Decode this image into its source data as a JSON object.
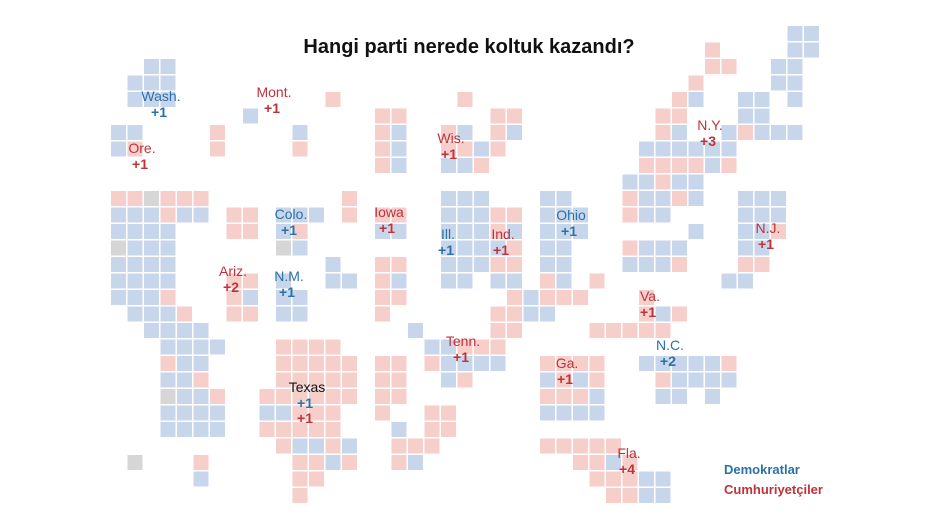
{
  "colors": {
    "dem": "#c8d6ec",
    "rep": "#f6cfcb",
    "gray": "#d6d6d6",
    "dem_text": "#2a71a8",
    "rep_text": "#c0323a",
    "neutral_text": "#111111"
  },
  "chart_data": {
    "type": "cartogram",
    "title": "Hangi parti nerede koltuk kazandı?",
    "legend": [
      {
        "key": "dem",
        "label": "Demokratlar"
      },
      {
        "key": "rep",
        "label": "Cumhuriyetçiler"
      }
    ],
    "flips": [
      {
        "state": "Wash.",
        "values": [
          {
            "party": "dem",
            "text": "+1"
          }
        ]
      },
      {
        "state": "Ore.",
        "values": [
          {
            "party": "rep",
            "text": "+1"
          }
        ]
      },
      {
        "state": "Mont.",
        "values": [
          {
            "party": "rep",
            "text": "+1"
          }
        ]
      },
      {
        "state": "Wis.",
        "values": [
          {
            "party": "rep",
            "text": "+1"
          }
        ]
      },
      {
        "state": "N.Y.",
        "values": [
          {
            "party": "rep",
            "text": "+3"
          }
        ]
      },
      {
        "state": "Colo.",
        "values": [
          {
            "party": "dem",
            "text": "+1"
          }
        ]
      },
      {
        "state": "Iowa",
        "values": [
          {
            "party": "rep",
            "text": "+1"
          }
        ]
      },
      {
        "state": "Ill.",
        "values": [
          {
            "party": "dem",
            "text": "+1"
          }
        ]
      },
      {
        "state": "Ind.",
        "values": [
          {
            "party": "rep",
            "text": "+1"
          }
        ]
      },
      {
        "state": "Ohio",
        "values": [
          {
            "party": "dem",
            "text": "+1"
          }
        ]
      },
      {
        "state": "N.J.",
        "values": [
          {
            "party": "rep",
            "text": "+1"
          }
        ]
      },
      {
        "state": "Ariz.",
        "values": [
          {
            "party": "rep",
            "text": "+2"
          }
        ]
      },
      {
        "state": "N.M.",
        "values": [
          {
            "party": "dem",
            "text": "+1"
          }
        ]
      },
      {
        "state": "Va.",
        "values": [
          {
            "party": "rep",
            "text": "+1"
          }
        ]
      },
      {
        "state": "Tenn.",
        "values": [
          {
            "party": "rep",
            "text": "+1"
          }
        ]
      },
      {
        "state": "N.C.",
        "values": [
          {
            "party": "dem",
            "text": "+2"
          }
        ]
      },
      {
        "state": "Ga.",
        "values": [
          {
            "party": "rep",
            "text": "+1"
          }
        ]
      },
      {
        "state": "Texas",
        "values": [
          {
            "party": "dem",
            "text": "+1"
          },
          {
            "party": "rep",
            "text": "+1"
          }
        ]
      },
      {
        "state": "Fla.",
        "values": [
          {
            "party": "rep",
            "text": "+4"
          }
        ]
      }
    ]
  }
}
